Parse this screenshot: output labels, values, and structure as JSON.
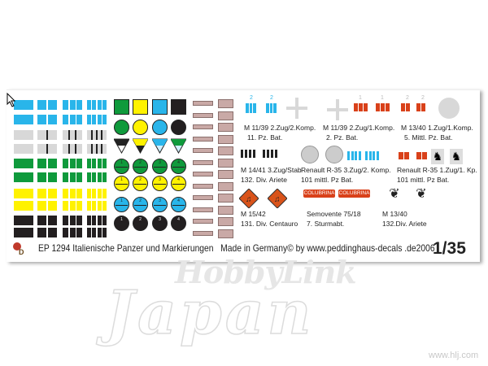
{
  "product_code_title": "EP 1294 Italienische Panzer und Markierungen",
  "made_in": "Made in Germany© by www.peddinghaus-decals .de2006",
  "scale": "1/35",
  "logo_text": "PD",
  "watermark": {
    "brand_top": "HobbyLink",
    "brand_bottom": "Japan",
    "url": "www.hlj.com"
  },
  "colors": {
    "blue": "#29b5ea",
    "gray": "#d8d8d8",
    "green": "#0f9a3c",
    "yellow": "#fff200",
    "black": "#231f20",
    "red": "#d9411a",
    "orange": "#d9531a",
    "plate": "#c9a9a6"
  },
  "stripe_rows": [
    "blue",
    "blue",
    "gray",
    "gray",
    "green",
    "green",
    "yellow",
    "yellow",
    "black",
    "black"
  ],
  "symbol_numbers": [
    "1",
    "2",
    "3",
    "4"
  ],
  "plates_count": 12,
  "blue_bar_numbers": [
    "2",
    "2"
  ],
  "red_bar_numbers": [
    "1",
    "1",
    "2",
    "2"
  ],
  "colubrina": [
    "COLUBRINA",
    "COLUBRINA"
  ],
  "captions": [
    {
      "line1": "M 11/39 2.Zug/2.Komp.",
      "line2": "11. Pz. Bat."
    },
    {
      "line1": "M 11/39 2.Zug/1.Komp.",
      "line2": "2. Pz. Bat."
    },
    {
      "line1": "M 13/40 1.Zug/1.Komp.",
      "line2": "5.  Mittl. Pz. Bat."
    },
    {
      "line1": "M 14/41 3.Zug/Stab",
      "line2": "132. Div. Ariete"
    },
    {
      "line1": "Renault R-35 3.Zug/2. Komp.",
      "line2": "101 mittl. Pz Bat."
    },
    {
      "line1": "Renault R-35 1.Zug/1. Kp.",
      "line2": "101 mittl. Pz Bat."
    },
    {
      "line1": "M 15/42",
      "line2": "131. Div. Centauro"
    },
    {
      "line1": "Semovente 75/18",
      "line2": "7. Sturmabt."
    },
    {
      "line1": "M 13/40",
      "line2": "132.Div. Ariete"
    }
  ]
}
